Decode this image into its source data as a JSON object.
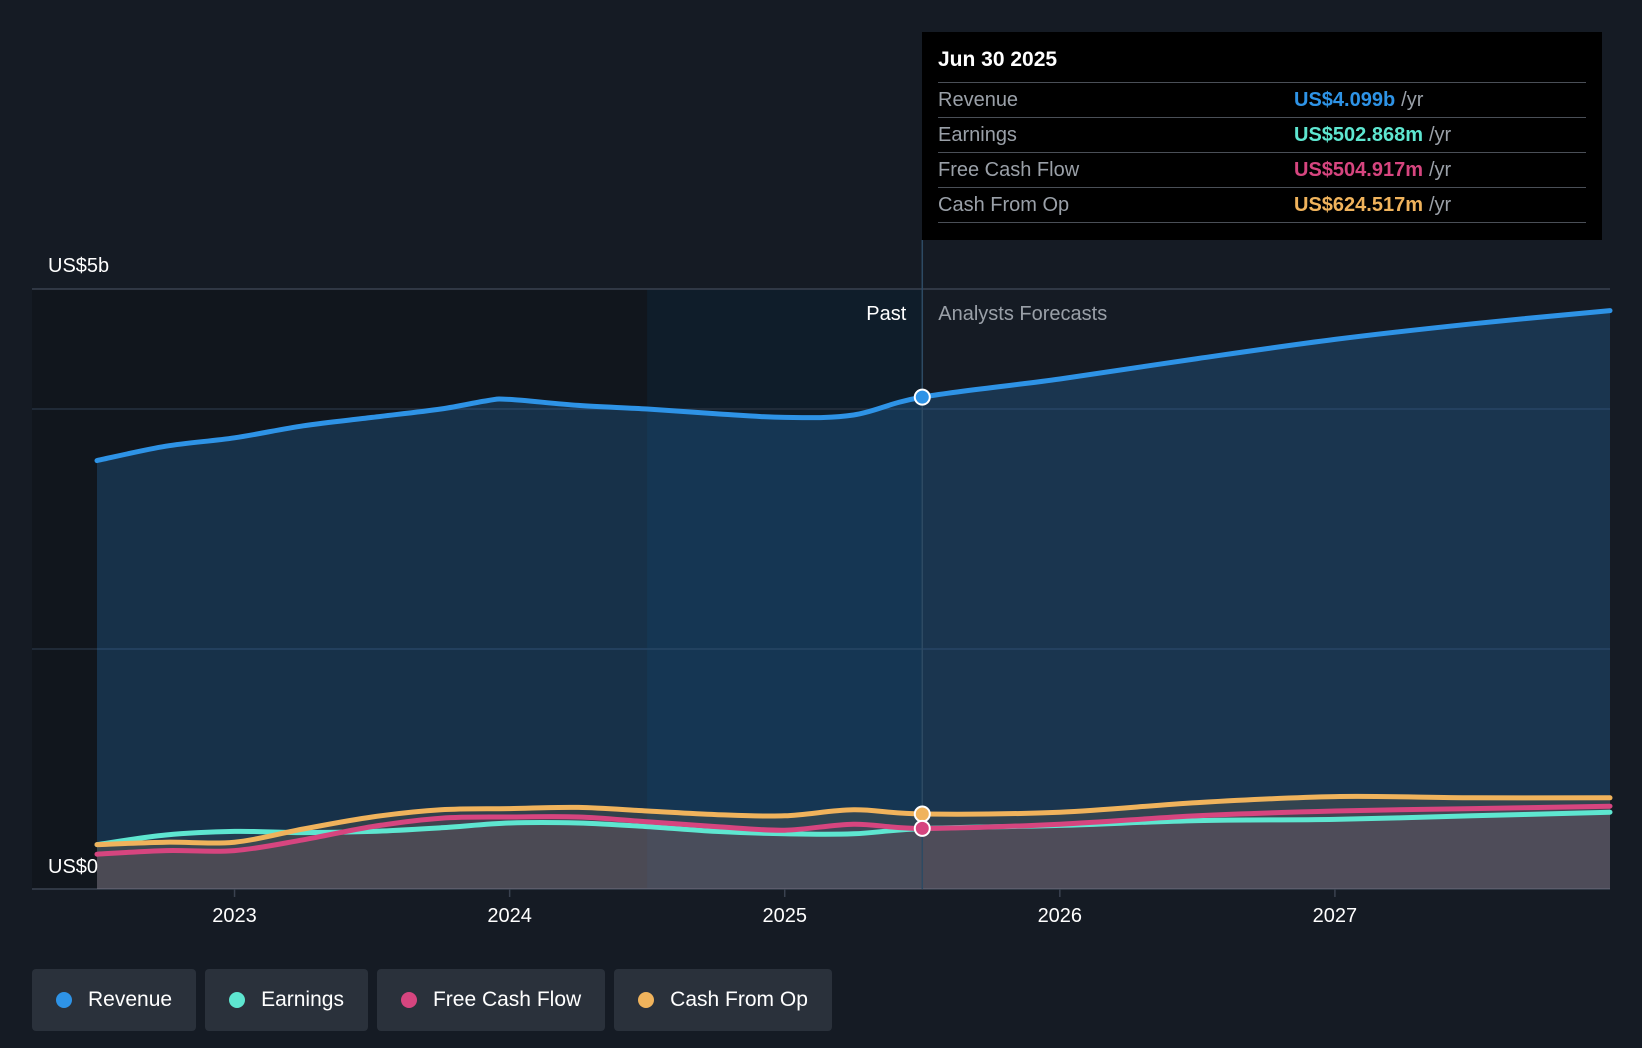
{
  "tooltip": {
    "date": "Jun 30 2025",
    "rows": [
      {
        "name": "Revenue",
        "value": "US$4.099b",
        "unit": "/yr",
        "color": "#2e93e6"
      },
      {
        "name": "Earnings",
        "value": "US$502.868m",
        "unit": "/yr",
        "color": "#5ee6d0"
      },
      {
        "name": "Free Cash Flow",
        "value": "US$504.917m",
        "unit": "/yr",
        "color": "#d6457f"
      },
      {
        "name": "Cash From Op",
        "value": "US$624.517m",
        "unit": "/yr",
        "color": "#f0b35c"
      }
    ]
  },
  "legend": [
    {
      "label": "Revenue",
      "color": "#2e93e6"
    },
    {
      "label": "Earnings",
      "color": "#5ee6d0"
    },
    {
      "label": "Free Cash Flow",
      "color": "#d6457f"
    },
    {
      "label": "Cash From Op",
      "color": "#f0b35c"
    }
  ],
  "chart_data": {
    "type": "area",
    "unit": "US$ billions",
    "ylim": [
      0,
      5
    ],
    "xlim": [
      2022.5,
      2028.0
    ],
    "y_axis_labels": [
      {
        "value": 5,
        "label": "US$5b"
      },
      {
        "value": 0,
        "label": "US$0"
      }
    ],
    "gridlines": [
      0,
      2,
      4,
      5
    ],
    "x_ticks": [
      {
        "value": 2023,
        "label": "2023"
      },
      {
        "value": 2024,
        "label": "2024"
      },
      {
        "value": 2025,
        "label": "2025"
      },
      {
        "value": 2026,
        "label": "2026"
      },
      {
        "value": 2027,
        "label": "2027"
      }
    ],
    "past_label": "Past",
    "forecast_label": "Analysts Forecasts",
    "forecast_start": 2025.5,
    "highlight_start": 2024.5,
    "series": [
      {
        "name": "Revenue",
        "color": "#2e93e6",
        "points": [
          [
            2022.5,
            3.57
          ],
          [
            2022.75,
            3.69
          ],
          [
            2023.0,
            3.76
          ],
          [
            2023.25,
            3.86
          ],
          [
            2023.5,
            3.93
          ],
          [
            2023.75,
            4.0
          ],
          [
            2023.92,
            4.07
          ],
          [
            2024.0,
            4.08
          ],
          [
            2024.25,
            4.03
          ],
          [
            2024.5,
            4.0
          ],
          [
            2024.75,
            3.96
          ],
          [
            2025.0,
            3.93
          ],
          [
            2025.25,
            3.95
          ],
          [
            2025.5,
            4.099
          ],
          [
            2026.0,
            4.25
          ],
          [
            2026.5,
            4.42
          ],
          [
            2027.0,
            4.58
          ],
          [
            2027.5,
            4.71
          ],
          [
            2028.0,
            4.82
          ]
        ]
      },
      {
        "name": "Earnings",
        "color": "#5ee6d0",
        "points": [
          [
            2022.5,
            0.37
          ],
          [
            2022.75,
            0.45
          ],
          [
            2023.0,
            0.48
          ],
          [
            2023.25,
            0.47
          ],
          [
            2023.5,
            0.48
          ],
          [
            2023.75,
            0.51
          ],
          [
            2024.0,
            0.55
          ],
          [
            2024.25,
            0.55
          ],
          [
            2024.5,
            0.52
          ],
          [
            2024.75,
            0.48
          ],
          [
            2025.0,
            0.46
          ],
          [
            2025.25,
            0.46
          ],
          [
            2025.5,
            0.503
          ],
          [
            2026.0,
            0.53
          ],
          [
            2026.5,
            0.57
          ],
          [
            2027.0,
            0.58
          ],
          [
            2027.5,
            0.61
          ],
          [
            2028.0,
            0.64
          ]
        ]
      },
      {
        "name": "Free Cash Flow",
        "color": "#d6457f",
        "points": [
          [
            2022.5,
            0.29
          ],
          [
            2022.75,
            0.32
          ],
          [
            2023.0,
            0.32
          ],
          [
            2023.25,
            0.41
          ],
          [
            2023.5,
            0.52
          ],
          [
            2023.75,
            0.59
          ],
          [
            2024.0,
            0.6
          ],
          [
            2024.25,
            0.6
          ],
          [
            2024.5,
            0.56
          ],
          [
            2024.75,
            0.52
          ],
          [
            2025.0,
            0.49
          ],
          [
            2025.25,
            0.54
          ],
          [
            2025.5,
            0.505
          ],
          [
            2026.0,
            0.54
          ],
          [
            2026.5,
            0.61
          ],
          [
            2027.0,
            0.65
          ],
          [
            2027.5,
            0.67
          ],
          [
            2028.0,
            0.69
          ]
        ]
      },
      {
        "name": "Cash From Op",
        "color": "#f0b35c",
        "points": [
          [
            2022.5,
            0.37
          ],
          [
            2022.75,
            0.39
          ],
          [
            2023.0,
            0.39
          ],
          [
            2023.25,
            0.5
          ],
          [
            2023.5,
            0.6
          ],
          [
            2023.75,
            0.66
          ],
          [
            2024.0,
            0.67
          ],
          [
            2024.25,
            0.68
          ],
          [
            2024.5,
            0.65
          ],
          [
            2024.75,
            0.62
          ],
          [
            2025.0,
            0.61
          ],
          [
            2025.25,
            0.66
          ],
          [
            2025.5,
            0.625
          ],
          [
            2026.0,
            0.64
          ],
          [
            2026.5,
            0.72
          ],
          [
            2027.0,
            0.77
          ],
          [
            2027.5,
            0.76
          ],
          [
            2028.0,
            0.76
          ]
        ]
      }
    ]
  }
}
